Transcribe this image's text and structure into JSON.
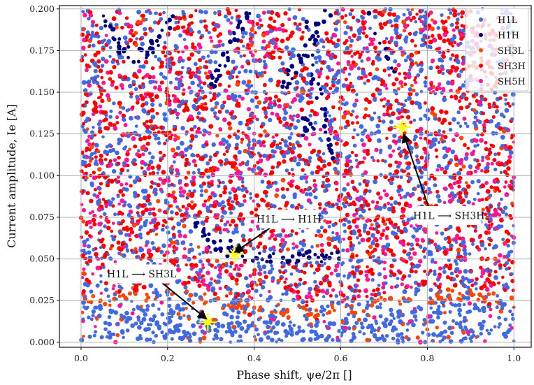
{
  "chart_data": {
    "type": "scatter",
    "title": "",
    "xlabel": "Phase shift, ψe/2π []",
    "ylabel": "Current amplitude, Ie [A]",
    "xlim": [
      -0.05,
      1.04
    ],
    "ylim": [
      -0.003,
      0.202
    ],
    "x_ticks": [
      "0.0",
      "0.2",
      "0.4",
      "0.6",
      "0.8",
      "1.0"
    ],
    "y_ticks": [
      "0.000",
      "0.025",
      "0.050",
      "0.075",
      "0.100",
      "0.125",
      "0.150",
      "0.175",
      "0.200"
    ],
    "grid": true,
    "legend_position": "top-right",
    "series": [
      {
        "name": "H1L",
        "color": "#4169e1"
      },
      {
        "name": "H1H",
        "color": "#000080"
      },
      {
        "name": "SH3L",
        "color": "#ff4500"
      },
      {
        "name": "SH3H",
        "color": "#ff0000"
      },
      {
        "name": "SH5H",
        "color": "#ff1493"
      }
    ],
    "markers": [
      {
        "x": 0.355,
        "y": 0.053,
        "color": "#ffff00"
      },
      {
        "x": 0.742,
        "y": 0.129,
        "color": "#ffff00"
      },
      {
        "x": 0.293,
        "y": 0.012,
        "color": "#ffff00"
      }
    ],
    "annotations": [
      {
        "text": "H1L ⟶ H1H",
        "box_x": 0.48,
        "box_y": 0.074,
        "point_x": 0.355,
        "point_y": 0.054
      },
      {
        "text": "H1L ⟶ SH3H",
        "box_x": 0.85,
        "box_y": 0.076,
        "point_x": 0.745,
        "point_y": 0.125
      },
      {
        "text": "H1L ⟶ SH3L",
        "box_x": 0.14,
        "box_y": 0.041,
        "point_x": 0.29,
        "point_y": 0.014
      }
    ]
  }
}
